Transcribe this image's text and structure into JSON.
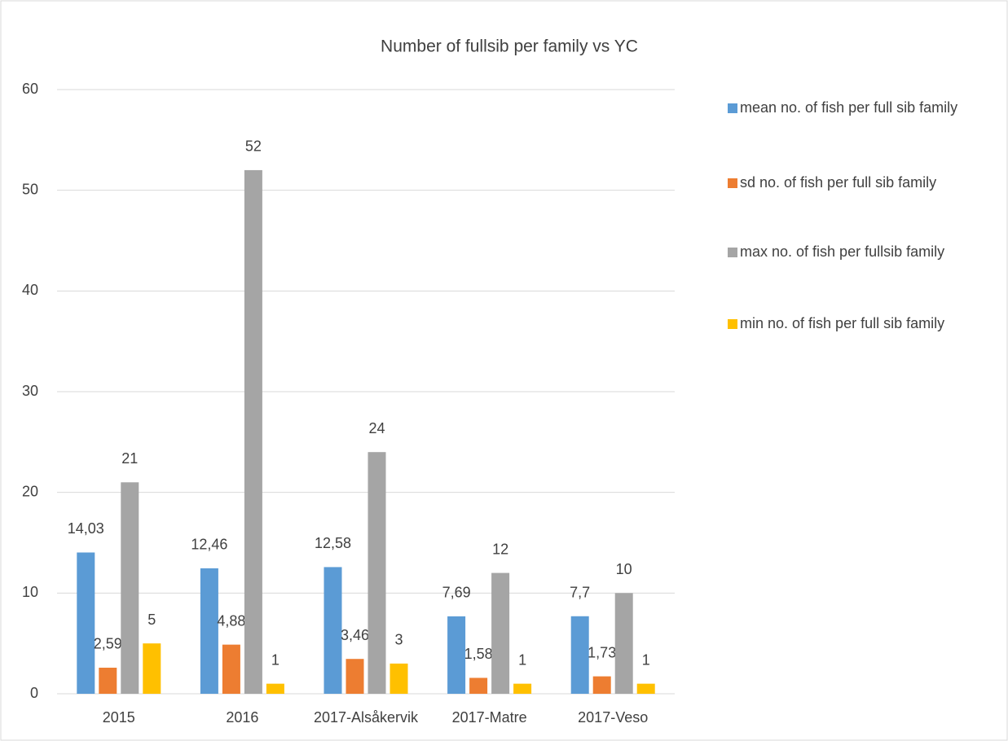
{
  "chart_data": {
    "type": "bar",
    "title": "Number of fullsib per family vs YC",
    "categories": [
      "2015",
      "2016",
      "2017-Alsåkervik",
      "2017-Matre",
      "2017-Veso"
    ],
    "series": [
      {
        "name": "mean no. of fish per full sib family",
        "color": "#5b9bd5",
        "values": [
          14.03,
          12.46,
          12.58,
          7.69,
          7.7
        ],
        "value_labels": [
          "14,03",
          "12,46",
          "12,58",
          "7,69",
          "7,7"
        ]
      },
      {
        "name": "sd no. of fish per full sib family",
        "color": "#ed7d31",
        "values": [
          2.59,
          4.88,
          3.46,
          1.58,
          1.73
        ],
        "value_labels": [
          "2,59",
          "4,88",
          "3,46",
          "1,58",
          "1,73"
        ]
      },
      {
        "name": "max no. of fish per fullsib  family",
        "color": "#a5a5a5",
        "values": [
          21,
          52,
          24,
          12,
          10
        ]
      },
      {
        "name": "min no. of fish per full sib family",
        "color": "#ffc000",
        "values": [
          5,
          1,
          3,
          1,
          1
        ]
      }
    ],
    "ylim": [
      0,
      60
    ],
    "yticks": [
      0,
      10,
      20,
      30,
      40,
      50,
      60
    ],
    "grid": true,
    "legend": "right"
  }
}
